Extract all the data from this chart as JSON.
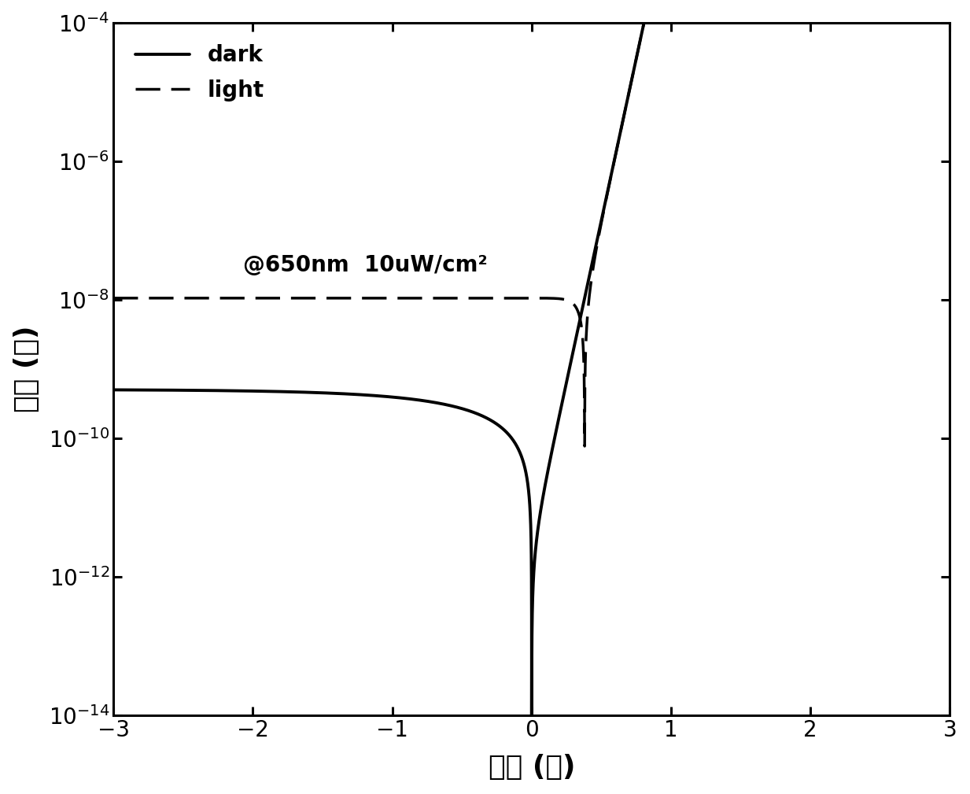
{
  "xlabel": "电压 (伏)",
  "ylabel": "电流 (安)",
  "xlim": [
    -3,
    3
  ],
  "ylim_log": [
    -14,
    -4
  ],
  "annotation": "@650nm  10uW/cm²",
  "legend_dark": "dark",
  "legend_light": "light",
  "background_color": "#ffffff",
  "line_color": "#000000",
  "linewidth_dark": 2.8,
  "linewidth_light": 2.5,
  "xlabel_fontsize": 26,
  "ylabel_fontsize": 26,
  "tick_fontsize": 20,
  "legend_fontsize": 20,
  "annotation_fontsize": 20,
  "dark_Is": 3e-12,
  "dark_n": 1.8,
  "dark_Ileak": 5e-10,
  "dark_leak_decay": 1.5,
  "light_Is": 3e-12,
  "light_n": 1.8,
  "light_Iph": 1.05e-08
}
